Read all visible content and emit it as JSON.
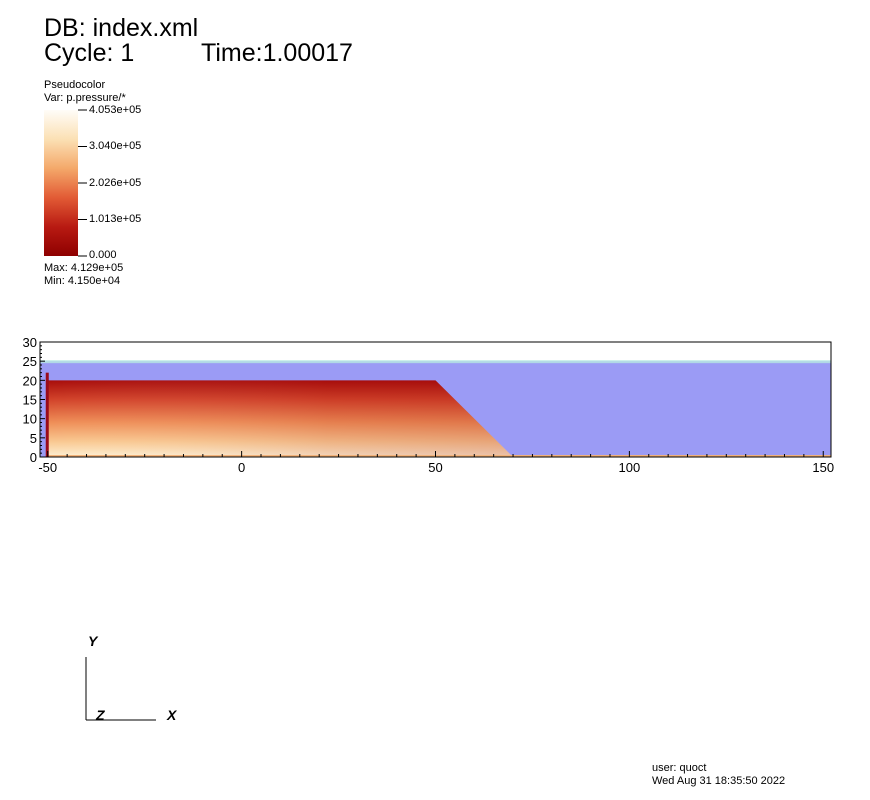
{
  "header": {
    "db_line": "DB: index.xml",
    "cycle": "Cycle: 1",
    "time": "Time:1.00017"
  },
  "legend": {
    "plot_type": "Pseudocolor",
    "variable": "Var: p.pressure/*",
    "ticks": [
      "4.053e+05",
      "3.040e+05",
      "2.026e+05",
      "1.013e+05",
      "0.000"
    ],
    "max_text": "Max:  4.129e+05",
    "min_text": "Min:  4.150e+04",
    "colormap_colors": [
      "#fffdf8",
      "#fbe0b4",
      "#f4a86a",
      "#e25b35",
      "#b81a12",
      "#8e0000"
    ]
  },
  "chart_data": {
    "type": "heatmap",
    "title": "",
    "xlabel": "",
    "ylabel": "",
    "xlim": [
      -52,
      152
    ],
    "ylim": [
      0,
      30
    ],
    "x_ticks": [
      -50,
      0,
      50,
      100,
      150
    ],
    "y_ticks": [
      0,
      5,
      10,
      15,
      20,
      25,
      30
    ],
    "x_tick_labels": [
      "-50",
      "0",
      "50",
      "100",
      "150"
    ],
    "y_tick_labels": [
      "0",
      "5",
      "10",
      "15",
      "20",
      "25",
      "30"
    ],
    "water_color": "#9b9bf5",
    "water_surface_color": "#b7e7e2",
    "regions": {
      "water": {
        "x_range": [
          -52,
          152
        ],
        "y_surface": 25
      },
      "embankment": {
        "polygon": [
          [
            -50,
            0
          ],
          [
            -50,
            20
          ],
          [
            50,
            20
          ],
          [
            70,
            0
          ]
        ],
        "pressure_top": "low",
        "pressure_bottom": "high"
      },
      "post": {
        "x": -50,
        "y_range": [
          0,
          22
        ]
      }
    }
  },
  "axis_triad": {
    "y_label": "Y",
    "x_label": "X",
    "z_label": "Z"
  },
  "footer": {
    "user": "user: quoct",
    "date": "Wed Aug 31 18:35:50 2022"
  }
}
